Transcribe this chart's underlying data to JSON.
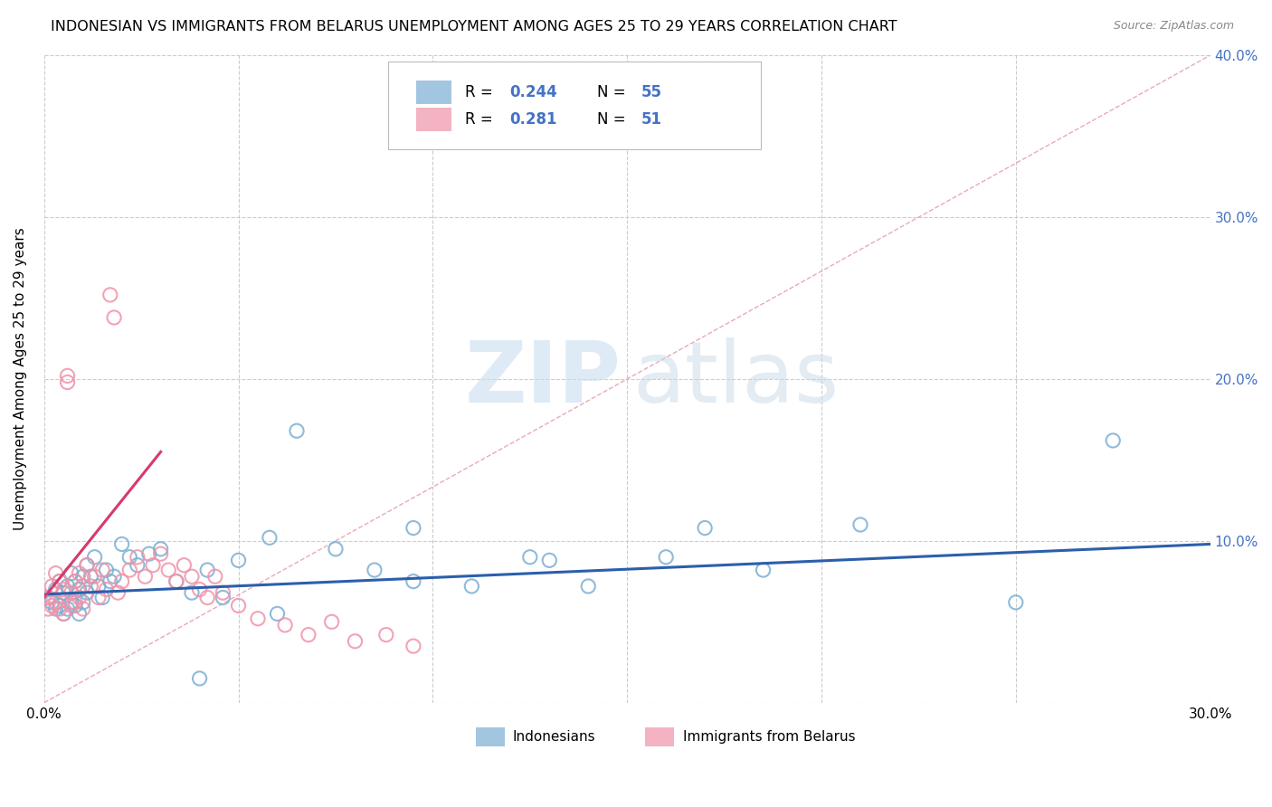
{
  "title": "INDONESIAN VS IMMIGRANTS FROM BELARUS UNEMPLOYMENT AMONG AGES 25 TO 29 YEARS CORRELATION CHART",
  "source": "Source: ZipAtlas.com",
  "ylabel": "Unemployment Among Ages 25 to 29 years",
  "x_min": 0.0,
  "x_max": 0.3,
  "y_min": 0.0,
  "y_max": 0.4,
  "indonesian_color": "#7bafd4",
  "belarus_color": "#f093a8",
  "trend_indonesian_color": "#2b5fac",
  "trend_belarus_color": "#d63a6a",
  "diag_color": "#e8a0b0",
  "legend_r_indonesian": "0.244",
  "legend_n_indonesian": "55",
  "legend_r_belarus": "0.281",
  "legend_n_belarus": "51",
  "indonesian_x": [
    0.001,
    0.002,
    0.003,
    0.003,
    0.004,
    0.004,
    0.005,
    0.005,
    0.006,
    0.006,
    0.007,
    0.007,
    0.008,
    0.008,
    0.009,
    0.009,
    0.01,
    0.01,
    0.011,
    0.011,
    0.012,
    0.013,
    0.014,
    0.015,
    0.016,
    0.017,
    0.018,
    0.02,
    0.022,
    0.024,
    0.027,
    0.03,
    0.034,
    0.038,
    0.042,
    0.046,
    0.05,
    0.058,
    0.065,
    0.075,
    0.085,
    0.095,
    0.11,
    0.125,
    0.14,
    0.16,
    0.185,
    0.21,
    0.25,
    0.275,
    0.17,
    0.13,
    0.095,
    0.06,
    0.04
  ],
  "indonesian_y": [
    0.065,
    0.062,
    0.07,
    0.058,
    0.075,
    0.06,
    0.068,
    0.055,
    0.072,
    0.058,
    0.08,
    0.062,
    0.075,
    0.06,
    0.07,
    0.055,
    0.078,
    0.062,
    0.085,
    0.068,
    0.078,
    0.09,
    0.072,
    0.065,
    0.082,
    0.075,
    0.078,
    0.098,
    0.09,
    0.085,
    0.092,
    0.095,
    0.075,
    0.068,
    0.082,
    0.065,
    0.088,
    0.102,
    0.168,
    0.095,
    0.082,
    0.108,
    0.072,
    0.09,
    0.072,
    0.09,
    0.082,
    0.11,
    0.062,
    0.162,
    0.108,
    0.088,
    0.075,
    0.055,
    0.015
  ],
  "belarus_x": [
    0.001,
    0.001,
    0.002,
    0.002,
    0.003,
    0.003,
    0.004,
    0.004,
    0.005,
    0.005,
    0.006,
    0.006,
    0.007,
    0.007,
    0.008,
    0.008,
    0.009,
    0.009,
    0.01,
    0.01,
    0.011,
    0.012,
    0.013,
    0.014,
    0.015,
    0.016,
    0.017,
    0.018,
    0.019,
    0.02,
    0.022,
    0.024,
    0.026,
    0.028,
    0.03,
    0.032,
    0.034,
    0.036,
    0.038,
    0.04,
    0.042,
    0.044,
    0.046,
    0.05,
    0.055,
    0.062,
    0.068,
    0.074,
    0.08,
    0.088,
    0.095
  ],
  "belarus_y": [
    0.065,
    0.058,
    0.072,
    0.06,
    0.08,
    0.062,
    0.075,
    0.058,
    0.07,
    0.055,
    0.202,
    0.198,
    0.068,
    0.06,
    0.075,
    0.062,
    0.08,
    0.065,
    0.072,
    0.058,
    0.085,
    0.072,
    0.078,
    0.065,
    0.082,
    0.07,
    0.252,
    0.238,
    0.068,
    0.075,
    0.082,
    0.09,
    0.078,
    0.085,
    0.092,
    0.082,
    0.075,
    0.085,
    0.078,
    0.07,
    0.065,
    0.078,
    0.068,
    0.06,
    0.052,
    0.048,
    0.042,
    0.05,
    0.038,
    0.042,
    0.035
  ],
  "indo_trend_x0": 0.0,
  "indo_trend_y0": 0.067,
  "indo_trend_x1": 0.3,
  "indo_trend_y1": 0.098,
  "bela_trend_x0": 0.0,
  "bela_trend_y0": 0.065,
  "bela_trend_x1": 0.03,
  "bela_trend_y1": 0.155
}
